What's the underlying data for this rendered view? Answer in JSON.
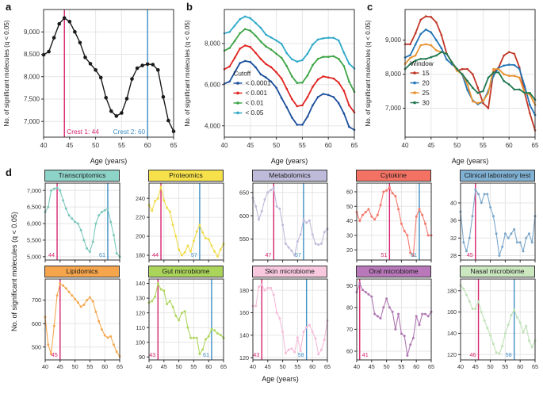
{
  "figure": {
    "panel_labels": {
      "a": "a",
      "b": "b",
      "c": "c",
      "d": "d"
    }
  },
  "colors": {
    "crest1": "#D6246E",
    "crest2": "#3E8EC4",
    "grid": "#E6E6E6",
    "panel_border": "#2F2F2F",
    "text": "#1A1A1A"
  },
  "chart_data": {
    "type": "line",
    "xlabel": "Age (years)",
    "ylabel": "No. of significant molecules (q < 0.05)",
    "ages": [
      40,
      41,
      42,
      43,
      44,
      45,
      46,
      47,
      48,
      49,
      50,
      51,
      52,
      53,
      54,
      55,
      56,
      57,
      58,
      59,
      60,
      61,
      62,
      63,
      64,
      65
    ],
    "xticks": [
      40,
      45,
      50,
      55,
      60,
      65
    ],
    "panels": [
      {
        "id": "a",
        "type": "line",
        "yticks": [
          7000,
          7500,
          8000,
          8500,
          9000
        ],
        "ylim": [
          6650,
          9500
        ],
        "series": [
          {
            "name": "q < 0.05",
            "color": "#1A1A1A",
            "values": [
              8490,
              8560,
              8870,
              9180,
              9310,
              9230,
              9000,
              8760,
              8430,
              8290,
              8150,
              7980,
              7530,
              7230,
              7120,
              7190,
              7510,
              7950,
              8190,
              8250,
              8280,
              8270,
              8150,
              7550,
              7020,
              6780
            ]
          }
        ],
        "crests": [
          {
            "age": 44,
            "label": "Crest 1: 44",
            "kind": "crest1",
            "anchor": "start"
          },
          {
            "age": 60,
            "label": "Crest 2: 60",
            "kind": "crest2",
            "anchor": "end"
          }
        ],
        "legend": null
      },
      {
        "id": "b",
        "type": "line",
        "yticks": [
          4000,
          6000,
          8000
        ],
        "ylim": [
          3450,
          9650
        ],
        "series": [
          {
            "name": "< 0.0001",
            "color": "#1C4F9C",
            "values": [
              6050,
              6150,
              6600,
              7050,
              7150,
              7100,
              6850,
              6500,
              6350,
              6150,
              5850,
              5350,
              4900,
              4400,
              4050,
              4050,
              4450,
              5000,
              5400,
              5550,
              5500,
              5400,
              5100,
              4600,
              3950,
              3800
            ]
          },
          {
            "name": "< 0.001",
            "color": "#E02420",
            "values": [
              6750,
              6880,
              7300,
              7750,
              7900,
              7830,
              7550,
              7250,
              7000,
              6850,
              6600,
              6300,
              5800,
              5300,
              4950,
              5000,
              5400,
              5900,
              6250,
              6400,
              6350,
              6300,
              6100,
              5700,
              5000,
              4650
            ]
          },
          {
            "name": "< 0.01",
            "color": "#3DA445",
            "values": [
              7650,
              7780,
              8120,
              8500,
              8700,
              8620,
              8380,
              8100,
              7850,
              7700,
              7500,
              7300,
              6900,
              6400,
              6080,
              6100,
              6450,
              6950,
              7250,
              7350,
              7350,
              7380,
              7250,
              6900,
              6150,
              5650
            ]
          },
          {
            "name": "< 0.05",
            "color": "#2FA8C9",
            "values": [
              8490,
              8560,
              8870,
              9180,
              9310,
              9230,
              9000,
              8760,
              8430,
              8290,
              8150,
              7980,
              7530,
              7230,
              7120,
              7190,
              7510,
              7950,
              8190,
              8250,
              8280,
              8270,
              8150,
              7550,
              7020,
              6780
            ]
          }
        ],
        "crests": [],
        "legend": {
          "title": "Cutoff",
          "x": 0.07,
          "y": 0.52
        }
      },
      {
        "id": "c",
        "type": "line",
        "yticks": [
          7000,
          8000,
          9000
        ],
        "ylim": [
          6150,
          9900
        ],
        "series": [
          {
            "name": "15",
            "color": "#C13728",
            "values": [
              8880,
              8880,
              9200,
              9600,
              9700,
              9680,
              9520,
              9150,
              8600,
              8350,
              8100,
              8150,
              8150,
              8000,
              7600,
              7150,
              7000,
              8050,
              8200,
              8550,
              8650,
              8600,
              8200,
              7450,
              6850,
              6350
            ]
          },
          {
            "name": "20",
            "color": "#2375B5",
            "values": [
              8490,
              8560,
              8870,
              9180,
              9310,
              9230,
              9000,
              8760,
              8430,
              8290,
              8150,
              7980,
              7530,
              7230,
              7120,
              7190,
              7510,
              7950,
              8190,
              8250,
              8280,
              8270,
              8150,
              7650,
              7100,
              6800
            ]
          },
          {
            "name": "25",
            "color": "#E8922F",
            "values": [
              8300,
              8480,
              8550,
              8850,
              8880,
              8850,
              8700,
              8650,
              8600,
              8350,
              8100,
              8000,
              7700,
              7200,
              7150,
              7200,
              7450,
              8150,
              8150,
              8000,
              7950,
              7950,
              7900,
              7450,
              7400,
              7100
            ]
          },
          {
            "name": "30",
            "color": "#20784F",
            "values": [
              8150,
              8300,
              8400,
              8450,
              8450,
              8500,
              8550,
              8650,
              8600,
              8350,
              8150,
              8000,
              7800,
              7600,
              7450,
              7500,
              7900,
              8050,
              8050,
              7800,
              7700,
              7550,
              7550,
              7450,
              7450,
              7250
            ]
          }
        ],
        "crests": [],
        "legend": {
          "title": "Window",
          "x": 0.04,
          "y": 0.44
        }
      },
      {
        "id": "d-transcriptomics",
        "type": "line",
        "row": 0,
        "header": "Transcriptomics",
        "header_fill": "#8DD3C7",
        "line_color": "#7CC9BC",
        "yticks": [
          5000,
          5500,
          6000,
          6500,
          7000
        ],
        "ylim": [
          4900,
          7220
        ],
        "values": [
          6350,
          6500,
          7000,
          7050,
          7080,
          7000,
          6700,
          6450,
          6250,
          6150,
          6050,
          6000,
          5800,
          5500,
          5250,
          5150,
          5450,
          6000,
          6250,
          6350,
          6400,
          6450,
          6050,
          5650,
          5100,
          5000
        ],
        "crests": [
          {
            "age": 44,
            "label": "44",
            "kind": "crest1"
          },
          {
            "age": 61,
            "label": "61",
            "kind": "crest2"
          }
        ]
      },
      {
        "id": "d-proteomics",
        "type": "line",
        "row": 0,
        "header": "Proteomics",
        "header_fill": "#F7E14B",
        "line_color": "#F0DB48",
        "yticks": [
          180,
          200,
          220,
          240
        ],
        "ylim": [
          175,
          256
        ],
        "values": [
          233,
          227,
          237,
          240,
          252,
          238,
          230,
          226,
          212,
          200,
          186,
          180,
          183,
          190,
          184,
          195,
          205,
          212,
          204,
          198,
          197,
          190,
          184,
          179,
          186,
          192
        ],
        "crests": [
          {
            "age": 44,
            "label": "44",
            "kind": "crest1"
          },
          {
            "age": 57,
            "label": "57",
            "kind": "crest2"
          }
        ]
      },
      {
        "id": "d-metabolomics",
        "type": "line",
        "row": 0,
        "header": "Metabolomics",
        "header_fill": "#BEBADA",
        "line_color": "#C0BBDB",
        "yticks": [
          550,
          600,
          650
        ],
        "ylim": [
          505,
          670
        ],
        "values": [
          638,
          620,
          592,
          610,
          635,
          650,
          655,
          660,
          620,
          615,
          580,
          540,
          532,
          525,
          515,
          545,
          560,
          592,
          585,
          590,
          560,
          540,
          538,
          540,
          565,
          572
        ],
        "crests": [
          {
            "age": 47,
            "label": "47",
            "kind": "crest1"
          },
          {
            "age": 57,
            "label": "57",
            "kind": "crest2"
          }
        ]
      },
      {
        "id": "d-cytokine",
        "type": "line",
        "row": 0,
        "header": "Cytokine",
        "header_fill": "#F47264",
        "line_color": "#F4796B",
        "yticks": [
          20,
          30,
          40,
          50,
          60
        ],
        "ylim": [
          13,
          66
        ],
        "values": [
          46,
          40,
          44,
          46,
          48,
          43,
          41,
          44,
          51,
          60,
          61,
          63,
          59,
          57,
          48,
          38,
          33,
          30,
          18,
          16,
          43,
          48,
          44,
          38,
          30,
          30
        ],
        "crests": [
          {
            "age": 51,
            "label": "51",
            "kind": "crest1"
          },
          {
            "age": 61,
            "label": "61",
            "kind": "crest2"
          }
        ]
      },
      {
        "id": "d-clinical-laboratory-test",
        "type": "line",
        "row": 0,
        "header": "Clinical laboratory test",
        "header_fill": "#80B1D3",
        "line_color": "#7BA7CB",
        "yticks": [
          28,
          32,
          36,
          40
        ],
        "ylim": [
          27,
          44.5
        ],
        "values": [
          38,
          31,
          29,
          32,
          37,
          43,
          42,
          40,
          42,
          42,
          39,
          37,
          33,
          28,
          30,
          33,
          32,
          33,
          34,
          31,
          31,
          29,
          32,
          33,
          31,
          37
        ],
        "crests": [
          {
            "age": 45,
            "label": "45",
            "kind": "crest1"
          }
        ]
      },
      {
        "id": "d-lipidomics",
        "type": "line",
        "row": 1,
        "header": "Lipidomics",
        "header_fill": "#F5A54C",
        "line_color": "#F5A951",
        "yticks": [
          500,
          600,
          700
        ],
        "ylim": [
          445,
          790
        ],
        "values": [
          628,
          510,
          470,
          590,
          720,
          770,
          762,
          750,
          735,
          720,
          705,
          690,
          672,
          680,
          700,
          712,
          695,
          650,
          610,
          575,
          550,
          540,
          545,
          510,
          480,
          460
        ],
        "crests": [
          {
            "age": 45,
            "label": "45",
            "kind": "crest1"
          }
        ]
      },
      {
        "id": "d-gut-microbiome",
        "type": "line",
        "row": 1,
        "header": "Gut microbiome",
        "header_fill": "#ABD45B",
        "line_color": "#AFD75F",
        "yticks": [
          90,
          100,
          110,
          120,
          130,
          140
        ],
        "ylim": [
          88,
          143
        ],
        "values": [
          127,
          128,
          131,
          140,
          136,
          135,
          126,
          128,
          124,
          118,
          115,
          120,
          121,
          110,
          103,
          103,
          103,
          92,
          95,
          102,
          104,
          109,
          108,
          106,
          105,
          103
        ],
        "crests": [
          {
            "age": 43,
            "label": "43",
            "kind": "crest1"
          },
          {
            "age": 61,
            "label": "61",
            "kind": "crest2"
          }
        ]
      },
      {
        "id": "d-skin-microbiome",
        "type": "line",
        "row": 1,
        "header": "Skin microbiome",
        "header_fill": "#F8C8DF",
        "line_color": "#F6BCD9",
        "yticks": [
          120,
          140,
          160,
          180
        ],
        "ylim": [
          118,
          190
        ],
        "values": [
          166,
          166,
          183,
          185,
          180,
          182,
          182,
          176,
          160,
          155,
          143,
          124,
          127,
          128,
          125,
          138,
          126,
          143,
          147,
          149,
          143,
          137,
          123,
          127,
          136,
          153
        ],
        "crests": [
          {
            "age": 43,
            "label": "43",
            "kind": "crest1"
          },
          {
            "age": 58,
            "label": "58",
            "kind": "crest2"
          }
        ]
      },
      {
        "id": "d-oral-microbiome",
        "type": "line",
        "row": 1,
        "header": "Oral microbiome",
        "header_fill": "#B878BA",
        "line_color": "#B077B3",
        "yticks": [
          60,
          70,
          80,
          90
        ],
        "ylim": [
          56,
          93
        ],
        "values": [
          87,
          91,
          88,
          87,
          86,
          85,
          77,
          76,
          75,
          80,
          84,
          80,
          78,
          70,
          77,
          68,
          67,
          58,
          63,
          66,
          76,
          72,
          77,
          77,
          76,
          78
        ],
        "crests": [
          {
            "age": 41,
            "label": "41",
            "kind": "crest1"
          }
        ]
      },
      {
        "id": "d-nasal-microbiome",
        "type": "line",
        "row": 1,
        "header": "Nasal microbiome",
        "header_fill": "#CBE7C0",
        "line_color": "#BFE2B7",
        "yticks": [
          120,
          140,
          160,
          180
        ],
        "ylim": [
          115,
          191
        ],
        "values": [
          185,
          182,
          176,
          170,
          163,
          163,
          170,
          160,
          152,
          145,
          138,
          130,
          122,
          121,
          128,
          140,
          148,
          157,
          162,
          155,
          150,
          141,
          147,
          133,
          127,
          133
        ],
        "crests": [
          {
            "age": 46,
            "label": "46",
            "kind": "crest1"
          },
          {
            "age": 58,
            "label": "58",
            "kind": "crest2"
          }
        ]
      }
    ]
  }
}
